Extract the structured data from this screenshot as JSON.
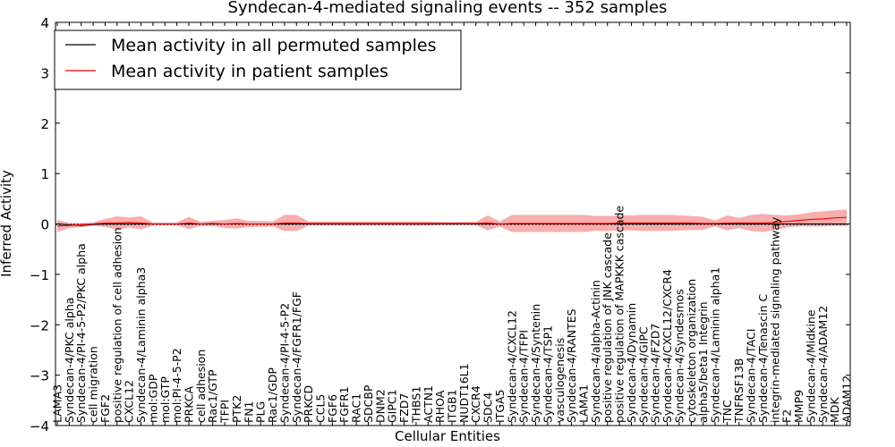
{
  "chart_data": {
    "type": "line",
    "title": "Syndecan-4-mediated signaling events -- 352 samples",
    "xlabel": "Cellular Entities",
    "ylabel": "Inferred Activity",
    "ylim": [
      -4,
      4
    ],
    "yticks": [
      "4",
      "3",
      "2",
      "1",
      "0",
      "−1",
      "−2",
      "−3",
      "−4"
    ],
    "yticks_values": [
      4,
      3,
      2,
      1,
      0,
      -1,
      -2,
      -3,
      -4
    ],
    "legend_position": "top-left",
    "categories": [
      "LAMA3",
      "Syndecan-4/PKC alpha",
      "Syndecan-4/PI-4-5-P2/PKC alpha",
      "cell migration",
      "FGF2",
      "positive regulation of cell adhesion",
      "CXCL12",
      "Syndecan-4/Laminin alpha3",
      "mol:GDP",
      "mol:GTP",
      "mol:PI-4-5-P2",
      "PRKCA",
      "cell adhesion",
      "Rac1/GTP",
      "TFPI",
      "PTK2",
      "FN1",
      "PLG",
      "Rac1/GDP",
      "Syndecan-4/PI-4-5-P2",
      "Syndecan-4/FGFR1/FGF",
      "PRKCD",
      "CCL5",
      "FGF6",
      "FGFR1",
      "RAC1",
      "SDCBP",
      "DNM2",
      "GIPC1",
      "FZD7",
      "THBS1",
      "ACTN1",
      "RHOA",
      "ITGB1",
      "NUDT16L1",
      "CXCR4",
      "SDC4",
      "ITGA5",
      "Syndecan-4/CXCL12",
      "Syndecan-4/TFPI",
      "Syndecan-4/Syntenin",
      "Syndecan-4/TSP1",
      "vasculogenesis",
      "Syndecan-4/RANTES",
      "LAMA1",
      "Syndecan-4/alpha-Actinin",
      "positive regulation of JNK cascade",
      "positive regulation of MAPKKK cascade",
      "Syndecan-4/Dynamin",
      "Syndecan-4/GIPC",
      "Syndecan-4/FZD7",
      "Syndecan-4/CXCL12/CXCR4",
      "Syndecan-4/Syndesmos",
      "cytoskeleton organization",
      "alpha5/beta1 Integrin",
      "Syndecan-4/Laminin alpha1",
      "TNC",
      "TNFRSF13B",
      "Syndecan-4/TACI",
      "Syndecan-4/Tenascin C",
      "integrin-mediated signaling pathway",
      "F2",
      "MMP9",
      "Syndecan-4/Midkine",
      "Syndecan-4/ADAM12",
      "MDK",
      "ADAM12"
    ],
    "series": [
      {
        "name": "Mean activity in all permuted samples",
        "color": "#000000",
        "band_color": "#c8c8c8",
        "values": [
          0.0,
          -0.02,
          -0.03,
          -0.01,
          0.0,
          0.0,
          0.0,
          0.0,
          0.0,
          0.0,
          0.0,
          0.0,
          0.0,
          0.0,
          0.0,
          0.0,
          0.0,
          0.0,
          0.0,
          0.0,
          0.0,
          0.0,
          0.0,
          0.0,
          0.0,
          0.0,
          0.0,
          0.0,
          0.0,
          0.0,
          0.0,
          0.0,
          0.0,
          0.0,
          0.0,
          0.0,
          0.0,
          0.0,
          0.0,
          0.0,
          0.0,
          0.0,
          0.0,
          0.0,
          0.0,
          0.0,
          0.0,
          0.0,
          0.0,
          0.0,
          0.0,
          0.0,
          0.0,
          0.0,
          0.0,
          0.0,
          0.0,
          0.0,
          0.0,
          0.0,
          0.0,
          0.0,
          0.0,
          0.0,
          0.0,
          0.0,
          0.0
        ],
        "band_halfwidth": [
          0.05,
          0.04,
          0.04,
          0.03,
          0.03,
          0.03,
          0.03,
          0.03,
          0.02,
          0.02,
          0.02,
          0.03,
          0.02,
          0.02,
          0.02,
          0.02,
          0.02,
          0.02,
          0.02,
          0.02,
          0.02,
          0.02,
          0.02,
          0.02,
          0.02,
          0.02,
          0.02,
          0.02,
          0.02,
          0.02,
          0.02,
          0.02,
          0.02,
          0.02,
          0.02,
          0.02,
          0.03,
          0.03,
          0.03,
          0.03,
          0.03,
          0.03,
          0.03,
          0.03,
          0.03,
          0.03,
          0.03,
          0.03,
          0.03,
          0.03,
          0.03,
          0.03,
          0.03,
          0.03,
          0.03,
          0.03,
          0.03,
          0.03,
          0.03,
          0.03,
          0.03,
          0.04,
          0.04,
          0.04,
          0.05,
          0.05,
          0.05
        ]
      },
      {
        "name": "Mean activity in patient samples",
        "color": "#ff0000",
        "band_color": "#f4a0a0",
        "values": [
          -0.04,
          -0.03,
          -0.02,
          0.0,
          0.02,
          0.02,
          0.03,
          0.02,
          0.0,
          0.0,
          0.0,
          0.02,
          0.0,
          0.01,
          0.0,
          0.01,
          0.0,
          0.0,
          0.0,
          0.02,
          0.02,
          0.01,
          0.01,
          0.01,
          0.01,
          0.01,
          0.01,
          0.01,
          0.01,
          0.01,
          0.01,
          0.01,
          0.01,
          0.01,
          0.01,
          0.01,
          0.02,
          0.0,
          0.01,
          0.01,
          0.01,
          0.01,
          0.01,
          0.01,
          0.01,
          0.01,
          0.01,
          0.02,
          0.02,
          0.02,
          0.02,
          0.02,
          0.02,
          0.02,
          0.01,
          0.01,
          0.02,
          0.02,
          0.02,
          0.02,
          0.03,
          0.05,
          0.07,
          0.09,
          0.1,
          0.12,
          0.13
        ],
        "band_halfwidth": [
          0.12,
          0.05,
          0.04,
          0.03,
          0.08,
          0.13,
          0.1,
          0.13,
          0.03,
          0.03,
          0.03,
          0.12,
          0.04,
          0.05,
          0.08,
          0.1,
          0.06,
          0.06,
          0.05,
          0.16,
          0.16,
          0.04,
          0.04,
          0.04,
          0.04,
          0.04,
          0.04,
          0.04,
          0.04,
          0.04,
          0.04,
          0.04,
          0.03,
          0.03,
          0.03,
          0.03,
          0.15,
          0.05,
          0.17,
          0.17,
          0.17,
          0.17,
          0.17,
          0.17,
          0.17,
          0.15,
          0.15,
          0.15,
          0.15,
          0.16,
          0.16,
          0.16,
          0.15,
          0.14,
          0.13,
          0.06,
          0.15,
          0.1,
          0.16,
          0.18,
          0.15,
          0.12,
          0.12,
          0.14,
          0.15,
          0.15,
          0.16
        ]
      }
    ]
  }
}
